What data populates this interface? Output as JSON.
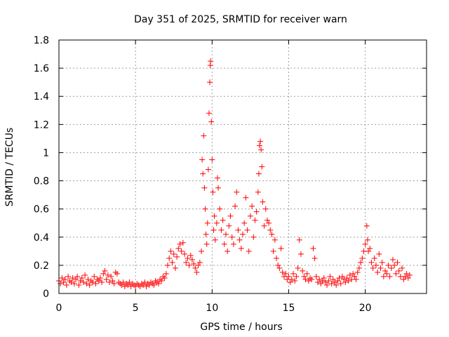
{
  "chart_data": {
    "type": "scatter",
    "title": "Day 351 of 2025, SRMTID for receiver warn",
    "xlabel": "GPS time / hours",
    "ylabel": "SRMTID / TECUs",
    "xlim": [
      0,
      24
    ],
    "ylim": [
      0,
      1.8
    ],
    "xticks": [
      0,
      5,
      10,
      15,
      20
    ],
    "yticks": [
      0,
      0.2,
      0.4,
      0.6,
      0.8,
      1,
      1.2,
      1.4,
      1.6,
      1.8
    ],
    "xtick_labels": [
      "0",
      "5",
      "10",
      "15",
      "20"
    ],
    "ytick_labels": [
      "0",
      "0.2",
      "0.4",
      "0.6",
      "0.8",
      "1",
      "1.2",
      "1.4",
      "1.6",
      "1.8"
    ],
    "grid": true,
    "marker": "+",
    "color": "#ff0000",
    "series": [
      {
        "name": "SRMTID",
        "points": [
          [
            0.0,
            0.09
          ],
          [
            0.1,
            0.07
          ],
          [
            0.2,
            0.11
          ],
          [
            0.3,
            0.08
          ],
          [
            0.4,
            0.1
          ],
          [
            0.5,
            0.06
          ],
          [
            0.6,
            0.12
          ],
          [
            0.7,
            0.09
          ],
          [
            0.8,
            0.08
          ],
          [
            0.9,
            0.11
          ],
          [
            1.0,
            0.07
          ],
          [
            1.1,
            0.1
          ],
          [
            1.2,
            0.12
          ],
          [
            1.3,
            0.06
          ],
          [
            1.4,
            0.09
          ],
          [
            1.5,
            0.11
          ],
          [
            1.6,
            0.08
          ],
          [
            1.7,
            0.13
          ],
          [
            1.8,
            0.07
          ],
          [
            1.9,
            0.1
          ],
          [
            2.0,
            0.06
          ],
          [
            2.1,
            0.09
          ],
          [
            2.2,
            0.08
          ],
          [
            2.3,
            0.12
          ],
          [
            2.4,
            0.07
          ],
          [
            2.5,
            0.1
          ],
          [
            2.6,
            0.09
          ],
          [
            2.7,
            0.11
          ],
          [
            2.8,
            0.08
          ],
          [
            2.9,
            0.14
          ],
          [
            3.0,
            0.16
          ],
          [
            3.1,
            0.1
          ],
          [
            3.2,
            0.13
          ],
          [
            3.3,
            0.08
          ],
          [
            3.4,
            0.12
          ],
          [
            3.5,
            0.09
          ],
          [
            3.6,
            0.07
          ],
          [
            3.7,
            0.15
          ],
          [
            3.8,
            0.14
          ],
          [
            3.9,
            0.08
          ],
          [
            4.0,
            0.07
          ],
          [
            4.1,
            0.06
          ],
          [
            4.2,
            0.08
          ],
          [
            4.3,
            0.05
          ],
          [
            4.4,
            0.07
          ],
          [
            4.5,
            0.06
          ],
          [
            4.6,
            0.08
          ],
          [
            4.7,
            0.05
          ],
          [
            4.8,
            0.07
          ],
          [
            4.9,
            0.06
          ],
          [
            5.0,
            0.05
          ],
          [
            5.1,
            0.07
          ],
          [
            5.2,
            0.06
          ],
          [
            5.3,
            0.05
          ],
          [
            5.4,
            0.07
          ],
          [
            5.5,
            0.06
          ],
          [
            5.6,
            0.08
          ],
          [
            5.7,
            0.05
          ],
          [
            5.8,
            0.07
          ],
          [
            5.9,
            0.06
          ],
          [
            6.0,
            0.08
          ],
          [
            6.1,
            0.07
          ],
          [
            6.2,
            0.06
          ],
          [
            6.3,
            0.09
          ],
          [
            6.4,
            0.08
          ],
          [
            6.5,
            0.07
          ],
          [
            6.6,
            0.1
          ],
          [
            6.7,
            0.09
          ],
          [
            6.8,
            0.12
          ],
          [
            6.9,
            0.11
          ],
          [
            7.0,
            0.14
          ],
          [
            7.1,
            0.2
          ],
          [
            7.2,
            0.25
          ],
          [
            7.3,
            0.3
          ],
          [
            7.4,
            0.22
          ],
          [
            7.5,
            0.28
          ],
          [
            7.6,
            0.18
          ],
          [
            7.7,
            0.26
          ],
          [
            7.8,
            0.32
          ],
          [
            7.9,
            0.35
          ],
          [
            8.0,
            0.3
          ],
          [
            8.1,
            0.36
          ],
          [
            8.2,
            0.28
          ],
          [
            8.3,
            0.22
          ],
          [
            8.4,
            0.25
          ],
          [
            8.5,
            0.2
          ],
          [
            8.6,
            0.27
          ],
          [
            8.7,
            0.24
          ],
          [
            8.8,
            0.21
          ],
          [
            8.9,
            0.18
          ],
          [
            9.0,
            0.15
          ],
          [
            9.1,
            0.2
          ],
          [
            9.2,
            0.22
          ],
          [
            9.3,
            0.3
          ],
          [
            9.35,
            0.95
          ],
          [
            9.4,
            0.85
          ],
          [
            9.45,
            1.12
          ],
          [
            9.5,
            0.75
          ],
          [
            9.55,
            0.6
          ],
          [
            9.6,
            0.42
          ],
          [
            9.65,
            0.35
          ],
          [
            9.7,
            0.5
          ],
          [
            9.75,
            0.88
          ],
          [
            9.8,
            1.28
          ],
          [
            9.85,
            1.5
          ],
          [
            9.88,
            1.62
          ],
          [
            9.9,
            1.65
          ],
          [
            9.95,
            1.22
          ],
          [
            10.0,
            0.95
          ],
          [
            10.05,
            0.72
          ],
          [
            10.1,
            0.45
          ],
          [
            10.15,
            0.55
          ],
          [
            10.2,
            0.38
          ],
          [
            10.3,
            0.5
          ],
          [
            10.35,
            0.82
          ],
          [
            10.4,
            0.75
          ],
          [
            10.5,
            0.6
          ],
          [
            10.6,
            0.45
          ],
          [
            10.7,
            0.52
          ],
          [
            10.8,
            0.35
          ],
          [
            10.9,
            0.42
          ],
          [
            11.0,
            0.3
          ],
          [
            11.1,
            0.48
          ],
          [
            11.2,
            0.55
          ],
          [
            11.3,
            0.4
          ],
          [
            11.4,
            0.35
          ],
          [
            11.5,
            0.62
          ],
          [
            11.6,
            0.72
          ],
          [
            11.7,
            0.45
          ],
          [
            11.8,
            0.38
          ],
          [
            11.9,
            0.32
          ],
          [
            12.0,
            0.42
          ],
          [
            12.1,
            0.5
          ],
          [
            12.2,
            0.68
          ],
          [
            12.3,
            0.45
          ],
          [
            12.4,
            0.3
          ],
          [
            12.5,
            0.55
          ],
          [
            12.6,
            0.62
          ],
          [
            12.7,
            0.4
          ],
          [
            12.8,
            0.52
          ],
          [
            12.9,
            0.58
          ],
          [
            13.0,
            0.72
          ],
          [
            13.05,
            0.85
          ],
          [
            13.1,
            1.05
          ],
          [
            13.15,
            1.08
          ],
          [
            13.2,
            1.02
          ],
          [
            13.25,
            0.9
          ],
          [
            13.3,
            0.65
          ],
          [
            13.4,
            0.48
          ],
          [
            13.5,
            0.6
          ],
          [
            13.6,
            0.52
          ],
          [
            13.7,
            0.5
          ],
          [
            13.8,
            0.45
          ],
          [
            13.9,
            0.42
          ],
          [
            14.0,
            0.3
          ],
          [
            14.1,
            0.38
          ],
          [
            14.2,
            0.25
          ],
          [
            14.3,
            0.2
          ],
          [
            14.4,
            0.18
          ],
          [
            14.5,
            0.32
          ],
          [
            14.6,
            0.15
          ],
          [
            14.7,
            0.12
          ],
          [
            14.8,
            0.14
          ],
          [
            14.9,
            0.1
          ],
          [
            15.0,
            0.12
          ],
          [
            15.1,
            0.08
          ],
          [
            15.2,
            0.1
          ],
          [
            15.3,
            0.14
          ],
          [
            15.4,
            0.09
          ],
          [
            15.5,
            0.12
          ],
          [
            15.6,
            0.18
          ],
          [
            15.7,
            0.38
          ],
          [
            15.8,
            0.28
          ],
          [
            15.9,
            0.16
          ],
          [
            16.0,
            0.12
          ],
          [
            16.1,
            0.1
          ],
          [
            16.2,
            0.14
          ],
          [
            16.3,
            0.09
          ],
          [
            16.4,
            0.11
          ],
          [
            16.5,
            0.1
          ],
          [
            16.6,
            0.32
          ],
          [
            16.7,
            0.25
          ],
          [
            16.8,
            0.12
          ],
          [
            16.9,
            0.08
          ],
          [
            17.0,
            0.1
          ],
          [
            17.1,
            0.07
          ],
          [
            17.2,
            0.09
          ],
          [
            17.3,
            0.11
          ],
          [
            17.4,
            0.08
          ],
          [
            17.5,
            0.06
          ],
          [
            17.6,
            0.09
          ],
          [
            17.7,
            0.12
          ],
          [
            17.8,
            0.07
          ],
          [
            17.9,
            0.1
          ],
          [
            18.0,
            0.08
          ],
          [
            18.1,
            0.06
          ],
          [
            18.2,
            0.09
          ],
          [
            18.3,
            0.11
          ],
          [
            18.4,
            0.07
          ],
          [
            18.5,
            0.12
          ],
          [
            18.6,
            0.1
          ],
          [
            18.7,
            0.08
          ],
          [
            18.8,
            0.11
          ],
          [
            18.9,
            0.09
          ],
          [
            19.0,
            0.13
          ],
          [
            19.1,
            0.1
          ],
          [
            19.2,
            0.14
          ],
          [
            19.3,
            0.12
          ],
          [
            19.4,
            0.1
          ],
          [
            19.5,
            0.15
          ],
          [
            19.6,
            0.18
          ],
          [
            19.7,
            0.22
          ],
          [
            19.8,
            0.25
          ],
          [
            19.9,
            0.3
          ],
          [
            20.0,
            0.35
          ],
          [
            20.1,
            0.48
          ],
          [
            20.15,
            0.38
          ],
          [
            20.2,
            0.3
          ],
          [
            20.3,
            0.32
          ],
          [
            20.4,
            0.22
          ],
          [
            20.5,
            0.18
          ],
          [
            20.6,
            0.25
          ],
          [
            20.7,
            0.2
          ],
          [
            20.8,
            0.15
          ],
          [
            20.9,
            0.28
          ],
          [
            21.0,
            0.18
          ],
          [
            21.1,
            0.22
          ],
          [
            21.2,
            0.12
          ],
          [
            21.3,
            0.16
          ],
          [
            21.4,
            0.14
          ],
          [
            21.5,
            0.2
          ],
          [
            21.6,
            0.12
          ],
          [
            21.7,
            0.18
          ],
          [
            21.8,
            0.24
          ],
          [
            21.9,
            0.2
          ],
          [
            22.0,
            0.14
          ],
          [
            22.1,
            0.22
          ],
          [
            22.2,
            0.16
          ],
          [
            22.3,
            0.12
          ],
          [
            22.4,
            0.18
          ],
          [
            22.5,
            0.1
          ],
          [
            22.6,
            0.12
          ],
          [
            22.7,
            0.14
          ],
          [
            22.8,
            0.11
          ],
          [
            22.9,
            0.13
          ]
        ]
      }
    ]
  }
}
